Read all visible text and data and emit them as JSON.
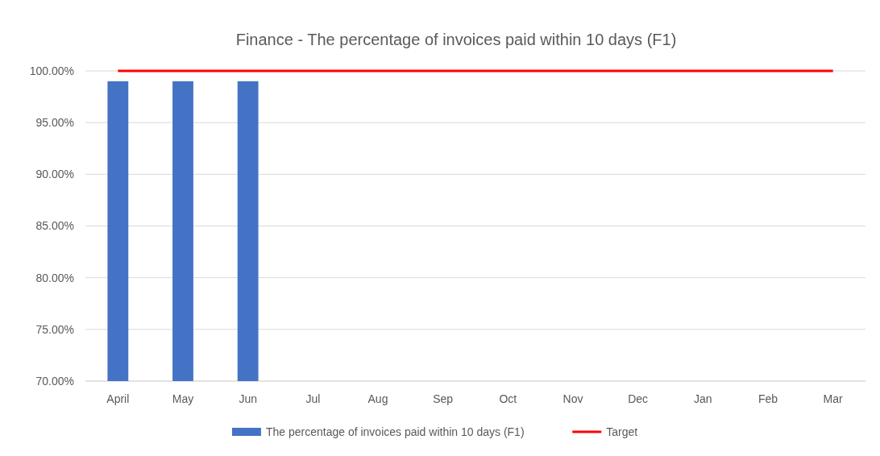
{
  "chart_data": {
    "type": "bar",
    "title": "Finance - The percentage of invoices paid within 10 days (F1)",
    "categories": [
      "April",
      "May",
      "Jun",
      "Jul",
      "Aug",
      "Sep",
      "Oct",
      "Nov",
      "Dec",
      "Jan",
      "Feb",
      "Mar"
    ],
    "series": [
      {
        "name": "The percentage of invoices paid within 10 days (F1)",
        "color": "#4472c4",
        "values": [
          99,
          99,
          99,
          null,
          null,
          null,
          null,
          null,
          null,
          null,
          null,
          null
        ]
      },
      {
        "name": "Target",
        "type": "line",
        "color": "#ff0000",
        "values": [
          100,
          100,
          100,
          100,
          100,
          100,
          100,
          100,
          100,
          100,
          100,
          100
        ]
      }
    ],
    "ylim": [
      70,
      100
    ],
    "yticks": [
      {
        "value": 70,
        "label": "70.00%"
      },
      {
        "value": 75,
        "label": "75.00%"
      },
      {
        "value": 80,
        "label": "80.00%"
      },
      {
        "value": 85,
        "label": "85.00%"
      },
      {
        "value": 90,
        "label": "90.00%"
      },
      {
        "value": 95,
        "label": "95.00%"
      },
      {
        "value": 100,
        "label": "100.00%"
      }
    ],
    "grid": "y",
    "legend": "bottom"
  }
}
